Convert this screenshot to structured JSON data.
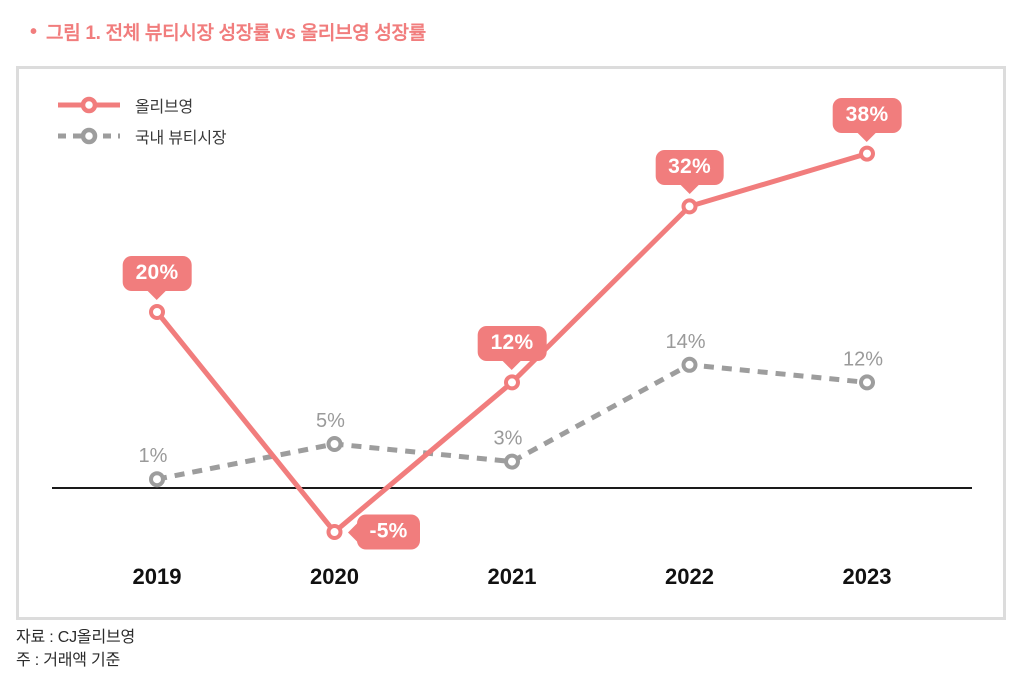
{
  "page": {
    "title_bullet": "•",
    "title": "그림 1. 전체 뷰티시장 성장률 vs 올리브영 성장률"
  },
  "colors": {
    "accent": "#F17D7D",
    "gray_series": "#9D9D9D",
    "label_gray": "#9A9A9A",
    "zero_line": "#1A1A1A",
    "panel_border": "#DCDCDC",
    "axis_text": "#111111"
  },
  "footer": {
    "source": "자료 : CJ올리브영",
    "note": "주 : 거래액 기준"
  },
  "chart_data": {
    "type": "line",
    "title": "전체 뷰티시장 성장률 vs 올리브영 성장률",
    "categories": [
      "2019",
      "2020",
      "2021",
      "2022",
      "2023"
    ],
    "series": [
      {
        "key": "oliveyoung",
        "name": "올리브영",
        "values": [
          20,
          -5,
          12,
          32,
          38
        ],
        "labels": [
          "20%",
          "-5%",
          "12%",
          "32%",
          "38%"
        ],
        "label_style": "badge",
        "label_placement": [
          "above",
          "right",
          "above",
          "above",
          "above"
        ],
        "style": "solid",
        "color": "#F17D7D"
      },
      {
        "key": "beauty-market",
        "name": "국내 뷰티시장",
        "values": [
          1,
          5,
          3,
          14,
          12
        ],
        "labels": [
          "1%",
          "5%",
          "3%",
          "14%",
          "12%"
        ],
        "label_style": "text",
        "label_placement": [
          "above",
          "above",
          "above",
          "above",
          "above"
        ],
        "style": "dashed",
        "color": "#9D9D9D"
      }
    ],
    "unit": "%",
    "baseline": 0,
    "ylim": [
      -10,
      45
    ],
    "grid": false,
    "legend_position": "top-left",
    "xlabel": "",
    "ylabel": ""
  }
}
